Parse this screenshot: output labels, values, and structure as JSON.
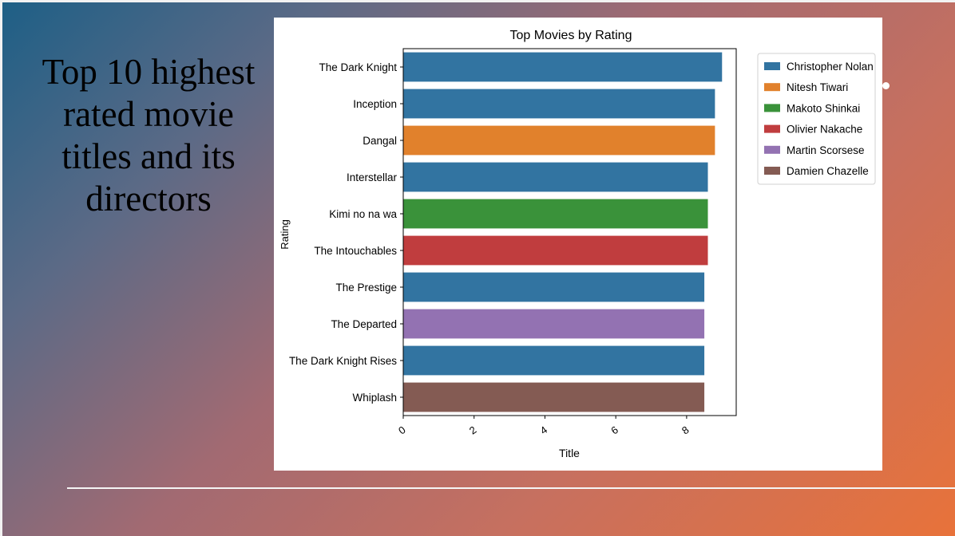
{
  "slide": {
    "title": "Top 10 highest rated movie titles and its directors"
  },
  "chart_data": {
    "type": "bar",
    "orientation": "horizontal",
    "title": "Top Movies by Rating",
    "xlabel": "Title",
    "ylabel": "Rating",
    "xlim": [
      0,
      9.4
    ],
    "xticks": [
      0,
      2,
      4,
      6,
      8
    ],
    "grid": false,
    "legend_position": "top-right",
    "categories": [
      "The Dark Knight",
      "Inception",
      "Dangal",
      "Interstellar",
      "Kimi no na wa",
      "The Intouchables",
      "The Prestige",
      "The Departed",
      "The Dark Knight Rises",
      "Whiplash"
    ],
    "values": [
      9.0,
      8.8,
      8.8,
      8.6,
      8.6,
      8.6,
      8.5,
      8.5,
      8.5,
      8.5
    ],
    "bar_director": [
      "Christopher Nolan",
      "Christopher Nolan",
      "Nitesh Tiwari",
      "Christopher Nolan",
      "Makoto Shinkai",
      "Olivier Nakache",
      "Christopher Nolan",
      "Martin Scorsese",
      "Christopher Nolan",
      "Damien Chazelle"
    ],
    "legend": [
      {
        "name": "Christopher Nolan",
        "color": "#3274a1"
      },
      {
        "name": "Nitesh Tiwari",
        "color": "#e1812c"
      },
      {
        "name": "Makoto Shinkai",
        "color": "#3a923a"
      },
      {
        "name": "Olivier Nakache",
        "color": "#c03d3e"
      },
      {
        "name": "Martin Scorsese",
        "color": "#9372b2"
      },
      {
        "name": "Damien Chazelle",
        "color": "#845b53"
      }
    ]
  }
}
